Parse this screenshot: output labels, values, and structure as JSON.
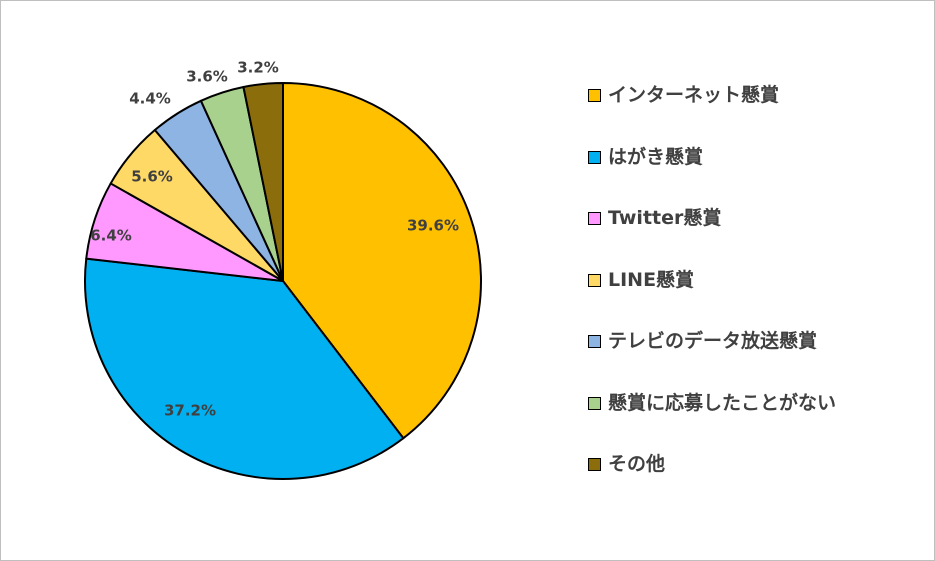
{
  "chart_data": {
    "type": "pie",
    "title": "",
    "start_angle_deg": 0,
    "direction": "clockwise",
    "legend_position": "right",
    "slices": [
      {
        "label": "インターネット懸賞",
        "value": 39.6,
        "value_label": "39.6%",
        "color": "#FFC000"
      },
      {
        "label": "はがき懸賞",
        "value": 37.2,
        "value_label": "37.2%",
        "color": "#00B0F0"
      },
      {
        "label": "Twitter懸賞",
        "value": 6.4,
        "value_label": "6.4%",
        "color": "#FF99FF"
      },
      {
        "label": "LINE懸賞",
        "value": 5.6,
        "value_label": "5.6%",
        "color": "#FFD966"
      },
      {
        "label": "テレビのデータ放送懸賞",
        "value": 4.4,
        "value_label": "4.4%",
        "color": "#8EB4E3"
      },
      {
        "label": "懸賞に応募したことがない",
        "value": 3.6,
        "value_label": "3.6%",
        "color": "#A9D18E"
      },
      {
        "label": "その他",
        "value": 3.2,
        "value_label": "3.2%",
        "color": "#8C6D0B"
      }
    ]
  }
}
